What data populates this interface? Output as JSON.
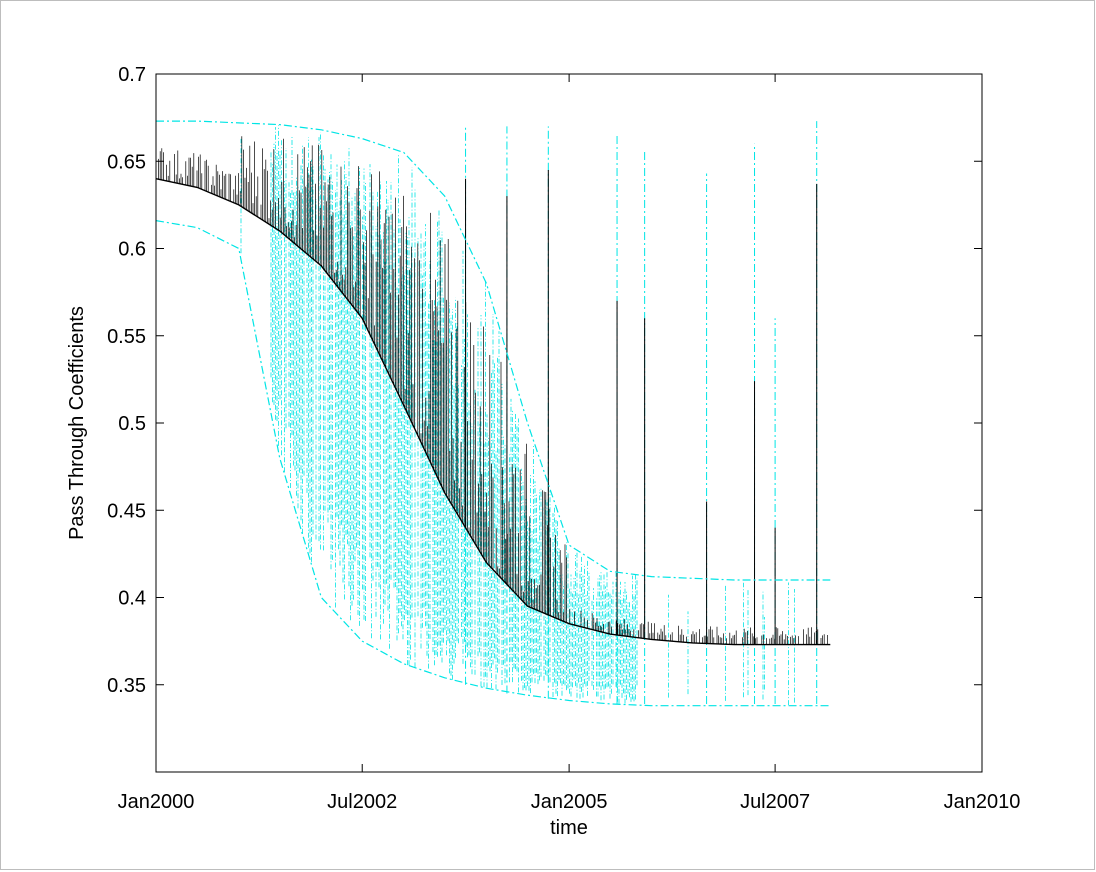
{
  "chart_data": {
    "type": "line",
    "title": "",
    "xlabel": "time",
    "ylabel": "Pass Through Coefficients",
    "xlim": [
      "2000-01-01",
      "2010-01-01"
    ],
    "ylim": [
      0.3,
      0.7
    ],
    "xticks": [
      {
        "date": "2000-01-01",
        "label": "Jan2000"
      },
      {
        "date": "2002-07-01",
        "label": "Jul2002"
      },
      {
        "date": "2005-01-01",
        "label": "Jan2005"
      },
      {
        "date": "2007-07-01",
        "label": "Jul2007"
      },
      {
        "date": "2010-01-01",
        "label": "Jan2010"
      }
    ],
    "yticks": [
      0.35,
      0.4,
      0.45,
      0.5,
      0.55,
      0.6,
      0.65,
      0.7
    ],
    "grid": false,
    "legend": "none",
    "series": [
      {
        "role": "upper band",
        "color": "#00e5e5",
        "style": "dash-dot",
        "x": [
          "2000-01-01",
          "2000-07-01",
          "2001-01-01",
          "2001-07-01",
          "2002-01-01",
          "2002-07-01",
          "2003-01-01",
          "2003-07-01",
          "2004-01-01",
          "2004-07-01",
          "2005-01-01",
          "2005-07-01",
          "2006-01-01",
          "2006-07-01",
          "2007-01-01",
          "2007-07-01",
          "2008-01-01",
          "2008-03-01"
        ],
        "values": [
          0.673,
          0.673,
          0.672,
          0.671,
          0.668,
          0.663,
          0.655,
          0.63,
          0.58,
          0.5,
          0.43,
          0.415,
          0.412,
          0.411,
          0.41,
          0.41,
          0.41,
          0.41
        ]
      },
      {
        "role": "estimate",
        "color": "#000000",
        "style": "solid",
        "x": [
          "2000-01-01",
          "2000-07-01",
          "2001-01-01",
          "2001-07-01",
          "2002-01-01",
          "2002-07-01",
          "2003-01-01",
          "2003-07-01",
          "2004-01-01",
          "2004-07-01",
          "2005-01-01",
          "2005-07-01",
          "2006-01-01",
          "2006-07-01",
          "2007-01-01",
          "2007-07-01",
          "2008-01-01",
          "2008-03-01"
        ],
        "values": [
          0.64,
          0.635,
          0.625,
          0.61,
          0.59,
          0.56,
          0.51,
          0.46,
          0.42,
          0.395,
          0.385,
          0.379,
          0.376,
          0.374,
          0.373,
          0.373,
          0.373,
          0.373
        ]
      },
      {
        "role": "lower band",
        "color": "#00e5e5",
        "style": "dash-dot",
        "x": [
          "2000-01-01",
          "2000-07-01",
          "2001-01-01",
          "2001-07-01",
          "2002-01-01",
          "2002-07-01",
          "2003-01-01",
          "2003-07-01",
          "2004-01-01",
          "2004-07-01",
          "2005-01-01",
          "2005-07-01",
          "2006-01-01",
          "2006-07-01",
          "2007-01-01",
          "2007-07-01",
          "2008-01-01",
          "2008-03-01"
        ],
        "values": [
          0.616,
          0.612,
          0.6,
          0.48,
          0.4,
          0.375,
          0.362,
          0.354,
          0.348,
          0.344,
          0.341,
          0.339,
          0.338,
          0.338,
          0.338,
          0.338,
          0.338,
          0.338
        ]
      }
    ],
    "spikes": [
      {
        "date": "2003-10-01",
        "low": 0.35,
        "high": 0.67,
        "black_high": 0.64
      },
      {
        "date": "2004-04-01",
        "low": 0.345,
        "high": 0.67,
        "black_high": 0.63
      },
      {
        "date": "2004-10-01",
        "low": 0.342,
        "high": 0.67,
        "black_high": 0.645
      },
      {
        "date": "2005-08-01",
        "low": 0.339,
        "high": 0.666,
        "black_high": 0.57
      },
      {
        "date": "2005-12-01",
        "low": 0.339,
        "high": 0.657,
        "black_high": 0.56
      },
      {
        "date": "2006-09-01",
        "low": 0.339,
        "high": 0.643,
        "black_high": 0.455
      },
      {
        "date": "2007-04-01",
        "low": 0.339,
        "high": 0.66,
        "black_high": 0.524
      },
      {
        "date": "2007-07-01",
        "low": 0.339,
        "high": 0.56,
        "black_high": 0.44
      },
      {
        "date": "2008-01-01",
        "low": 0.339,
        "high": 0.673,
        "black_high": 0.637
      }
    ]
  }
}
